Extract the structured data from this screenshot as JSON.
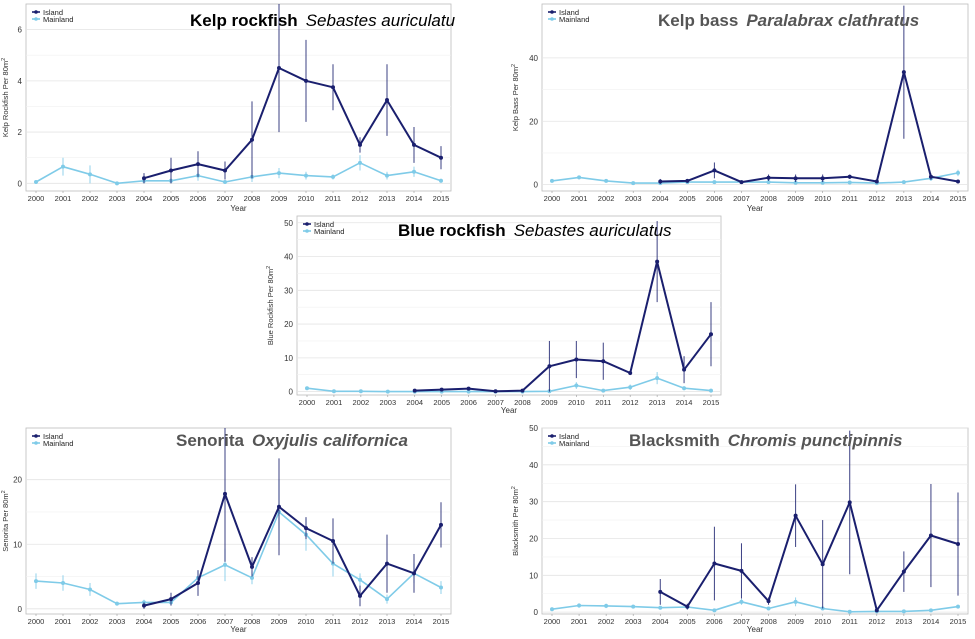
{
  "colors": {
    "island": "#1a1f6e",
    "mainland": "#7fcbe8",
    "grid": "#e4e4e4",
    "axis": "#555555"
  },
  "legend": {
    "island": "Island",
    "mainland": "Mainland"
  },
  "chart_data": [
    {
      "id": "kelp-rockfish",
      "type": "line",
      "title_common": "Kelp rockfish",
      "title_sci": "Sebastes auriculatus",
      "title_common_bold": true,
      "xlabel": "Year",
      "ylabel": "Kelp Rockfish Per 80m",
      "ylabel_sup": "2",
      "categories": [
        "2000",
        "2001",
        "2002",
        "2003",
        "2004",
        "2005",
        "2006",
        "2007",
        "2008",
        "2009",
        "2010",
        "2011",
        "2012",
        "2013",
        "2014",
        "2015"
      ],
      "ylim": [
        -0.3,
        7
      ],
      "yticks": [
        0,
        2,
        4,
        6
      ],
      "legend_position": "top-left",
      "series": [
        {
          "name": "Island",
          "values": [
            null,
            null,
            null,
            null,
            0.2,
            0.5,
            0.75,
            0.5,
            1.7,
            4.5,
            4.0,
            3.75,
            1.5,
            3.25,
            1.5,
            1.0
          ],
          "errors": [
            null,
            null,
            null,
            null,
            0.2,
            0.5,
            0.5,
            0.35,
            1.5,
            2.5,
            1.6,
            0.9,
            0.3,
            1.4,
            0.7,
            0.45
          ]
        },
        {
          "name": "Mainland",
          "values": [
            0.05,
            0.65,
            0.35,
            0.0,
            0.1,
            0.1,
            0.3,
            0.05,
            0.25,
            0.4,
            0.3,
            0.25,
            0.8,
            0.3,
            0.45,
            0.1
          ],
          "errors": [
            0.05,
            0.35,
            0.35,
            0.0,
            0.1,
            0.1,
            0.2,
            0.05,
            0.2,
            0.2,
            0.15,
            0.1,
            0.3,
            0.15,
            0.2,
            0.08
          ]
        }
      ]
    },
    {
      "id": "kelp-bass",
      "type": "line",
      "title_common": "Kelp bass",
      "title_sci": "Paralabrax clathratus",
      "title_common_bold": false,
      "xlabel": "Year",
      "ylabel": "Kelp Bass Per 80m",
      "ylabel_sup": "2",
      "categories": [
        "2000",
        "2001",
        "2002",
        "2003",
        "2004",
        "2005",
        "2006",
        "2007",
        "2008",
        "2009",
        "2010",
        "2011",
        "2012",
        "2013",
        "2014",
        "2015"
      ],
      "ylim": [
        -2,
        57
      ],
      "yticks": [
        0,
        20,
        40
      ],
      "legend_position": "top-left",
      "series": [
        {
          "name": "Island",
          "values": [
            null,
            null,
            null,
            null,
            1.0,
            1.2,
            4.5,
            0.8,
            2.2,
            2.0,
            2.0,
            2.5,
            1.0,
            35.5,
            2.5,
            1.0
          ],
          "errors": [
            null,
            null,
            null,
            null,
            0.8,
            0.6,
            2.5,
            0.5,
            1.0,
            1.2,
            1.2,
            0.7,
            0.5,
            21,
            1.0,
            0.6
          ]
        },
        {
          "name": "Mainland",
          "values": [
            1.2,
            2.3,
            1.2,
            0.5,
            0.5,
            0.8,
            0.8,
            0.8,
            0.8,
            0.6,
            0.6,
            0.7,
            0.5,
            0.8,
            2.0,
            3.7
          ],
          "errors": [
            0.4,
            0.6,
            0.5,
            0.3,
            0.3,
            0.3,
            0.3,
            0.3,
            0.3,
            0.3,
            0.3,
            0.3,
            0.3,
            0.3,
            0.8,
            1.0
          ]
        }
      ]
    },
    {
      "id": "blue-rockfish",
      "type": "line",
      "title_common": "Blue rockfish",
      "title_sci": "Sebastes auriculatus",
      "title_common_bold": true,
      "xlabel": "Year",
      "ylabel": "Blue Rockfish Per 80m",
      "ylabel_sup": "2",
      "categories": [
        "2000",
        "2001",
        "2002",
        "2003",
        "2004",
        "2005",
        "2006",
        "2007",
        "2008",
        "2009",
        "2010",
        "2011",
        "2012",
        "2013",
        "2014",
        "2015"
      ],
      "ylim": [
        -1,
        52
      ],
      "yticks": [
        0,
        10,
        20,
        30,
        40,
        50
      ],
      "legend_position": "top-left",
      "series": [
        {
          "name": "Island",
          "values": [
            null,
            null,
            null,
            null,
            0.3,
            0.6,
            0.9,
            0.1,
            0.3,
            7.5,
            9.5,
            9.0,
            5.5,
            38.5,
            6.5,
            17.0
          ],
          "errors": [
            null,
            null,
            null,
            null,
            0.2,
            0.4,
            0.5,
            0.1,
            0.2,
            7.5,
            5.5,
            5.5,
            0.6,
            12,
            4.0,
            9.5
          ]
        },
        {
          "name": "Mainland",
          "values": [
            1.0,
            0.1,
            0.1,
            0.0,
            0.0,
            0.0,
            0.0,
            0.0,
            0.0,
            0.1,
            1.8,
            0.3,
            1.3,
            4.0,
            1.0,
            0.3
          ],
          "errors": [
            0.5,
            0.1,
            0.1,
            0.0,
            0.0,
            0.0,
            0.0,
            0.0,
            0.0,
            0.1,
            1.0,
            0.2,
            0.8,
            1.8,
            0.6,
            0.2
          ]
        }
      ]
    },
    {
      "id": "senorita",
      "type": "line",
      "title_common": "Senorita",
      "title_sci": "Oxyjulis californica",
      "title_common_bold": false,
      "xlabel": "Year",
      "ylabel": "Senorita Per 80m",
      "ylabel_sup": "2",
      "categories": [
        "2000",
        "2001",
        "2002",
        "2003",
        "2004",
        "2005",
        "2006",
        "2007",
        "2008",
        "2009",
        "2010",
        "2011",
        "2012",
        "2013",
        "2014",
        "2015"
      ],
      "ylim": [
        -0.8,
        28
      ],
      "yticks": [
        0,
        10,
        20
      ],
      "legend_position": "top-left",
      "series": [
        {
          "name": "Island",
          "values": [
            null,
            null,
            null,
            null,
            0.5,
            1.5,
            4.0,
            17.8,
            6.5,
            15.8,
            12.5,
            10.5,
            2.0,
            7.0,
            5.5,
            13.0
          ],
          "errors": [
            null,
            null,
            null,
            null,
            0.5,
            1.0,
            2.0,
            10.5,
            1.5,
            7.5,
            1.7,
            3.5,
            1.6,
            4.5,
            3.0,
            3.5
          ]
        },
        {
          "name": "Mainland",
          "values": [
            4.3,
            4.0,
            3.0,
            0.8,
            1.0,
            1.0,
            4.8,
            6.8,
            4.8,
            15.0,
            11.5,
            7.0,
            4.5,
            1.5,
            5.5,
            3.3
          ],
          "errors": [
            1.2,
            1.2,
            1.0,
            0.3,
            0.4,
            0.4,
            1.0,
            2.5,
            1.0,
            5.0,
            2.5,
            2.0,
            1.0,
            0.7,
            1.5,
            1.0
          ]
        }
      ]
    },
    {
      "id": "blacksmith",
      "type": "line",
      "title_common": "Blacksmith",
      "title_sci": "Chromis punctipinnis",
      "title_common_bold": false,
      "xlabel": "Year",
      "ylabel": "Blacksmith Per 80m",
      "ylabel_sup": "2",
      "categories": [
        "2000",
        "2001",
        "2002",
        "2003",
        "2004",
        "2005",
        "2006",
        "2007",
        "2008",
        "2009",
        "2010",
        "2011",
        "2012",
        "2013",
        "2014",
        "2015"
      ],
      "ylim": [
        -0.5,
        50
      ],
      "yticks": [
        0,
        10,
        20,
        30,
        40,
        50
      ],
      "legend_position": "top-left",
      "series": [
        {
          "name": "Island",
          "values": [
            null,
            null,
            null,
            null,
            5.5,
            1.5,
            13.2,
            11.2,
            3.0,
            26.2,
            13.0,
            29.8,
            0.5,
            11.0,
            20.8,
            18.5
          ],
          "errors": [
            null,
            null,
            null,
            null,
            3.5,
            0.8,
            10,
            7.5,
            1.0,
            8.5,
            12,
            19.5,
            0.4,
            5.5,
            14,
            14
          ]
        },
        {
          "name": "Mainland",
          "values": [
            0.8,
            1.8,
            1.7,
            1.5,
            1.2,
            1.4,
            0.5,
            2.8,
            1.0,
            2.8,
            1.0,
            0.1,
            0.2,
            0.2,
            0.5,
            1.5
          ],
          "errors": [
            0.5,
            0.6,
            0.6,
            0.5,
            0.4,
            0.4,
            0.3,
            0.8,
            0.4,
            1.2,
            0.5,
            0.1,
            0.1,
            0.1,
            0.3,
            0.5
          ]
        }
      ]
    }
  ]
}
